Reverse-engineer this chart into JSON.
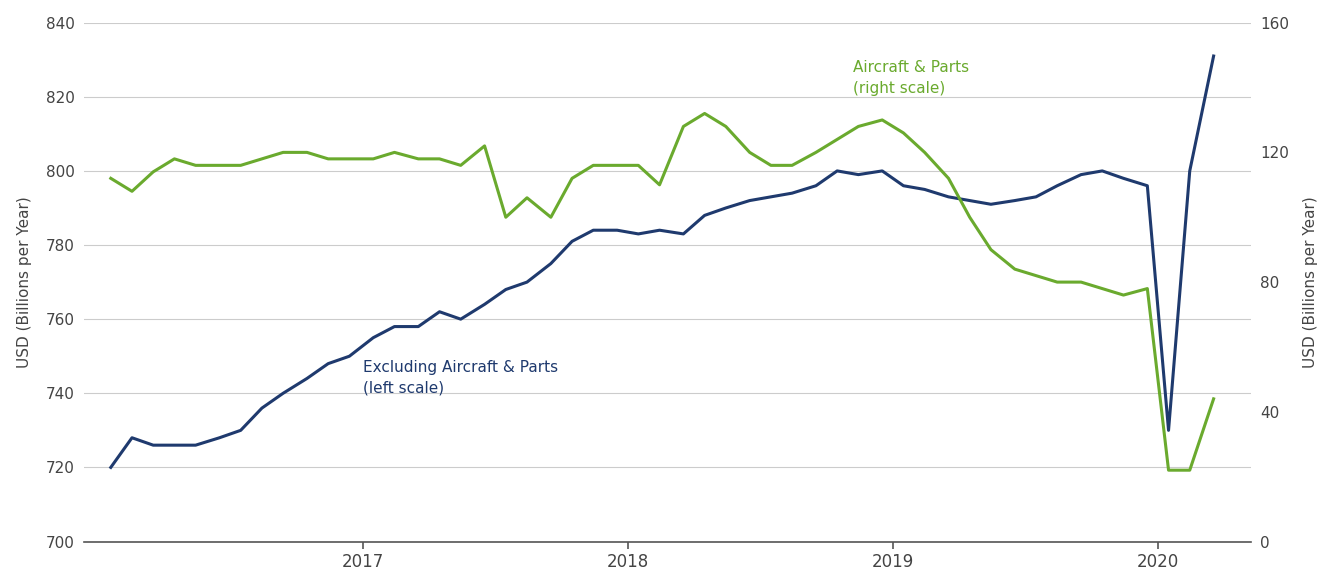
{
  "ylabel_left": "USD (Billions per Year)",
  "ylabel_right": "USD (Billions per Year)",
  "left_ylim": [
    700,
    840
  ],
  "right_ylim": [
    0,
    160
  ],
  "left_yticks": [
    700,
    720,
    740,
    760,
    780,
    800,
    820,
    840
  ],
  "right_yticks": [
    0,
    40,
    80,
    120,
    160
  ],
  "color_excl": "#1f3a6e",
  "color_aircraft": "#6aaa2e",
  "label_excl": "Excluding Aircraft & Parts\n(left scale)",
  "label_aircraft": "Aircraft & Parts\n(right scale)",
  "x_labels": [
    "2017",
    "2018",
    "2019",
    "2020"
  ],
  "x_tick_pos": [
    1.0,
    2.0,
    3.0,
    4.0
  ],
  "excl_x": [
    0.05,
    0.13,
    0.21,
    0.29,
    0.37,
    0.46,
    0.54,
    0.62,
    0.7,
    0.79,
    0.87,
    0.95,
    1.04,
    1.12,
    1.21,
    1.29,
    1.37,
    1.46,
    1.54,
    1.62,
    1.71,
    1.79,
    1.87,
    1.96,
    2.04,
    2.12,
    2.21,
    2.29,
    2.37,
    2.46,
    2.54,
    2.62,
    2.71,
    2.79,
    2.87,
    2.96,
    3.04,
    3.12,
    3.21,
    3.29,
    3.37,
    3.46,
    3.54,
    3.62,
    3.71,
    3.79,
    3.87,
    3.96,
    4.04,
    4.12,
    4.21
  ],
  "excl_y": [
    720,
    728,
    726,
    726,
    726,
    728,
    730,
    736,
    740,
    744,
    748,
    750,
    755,
    758,
    758,
    762,
    760,
    764,
    768,
    770,
    775,
    781,
    784,
    784,
    783,
    784,
    783,
    788,
    790,
    792,
    793,
    794,
    796,
    800,
    799,
    800,
    796,
    795,
    793,
    792,
    791,
    792,
    793,
    796,
    799,
    800,
    798,
    796,
    730,
    800,
    831
  ],
  "aircraft_x": [
    0.05,
    0.13,
    0.21,
    0.29,
    0.37,
    0.46,
    0.54,
    0.62,
    0.7,
    0.79,
    0.87,
    0.95,
    1.04,
    1.12,
    1.21,
    1.29,
    1.37,
    1.46,
    1.54,
    1.62,
    1.71,
    1.79,
    1.87,
    1.96,
    2.04,
    2.12,
    2.21,
    2.29,
    2.37,
    2.46,
    2.54,
    2.62,
    2.71,
    2.79,
    2.87,
    2.96,
    3.04,
    3.12,
    3.21,
    3.29,
    3.37,
    3.46,
    3.54,
    3.62,
    3.71,
    3.79,
    3.87,
    3.96,
    4.04,
    4.12,
    4.21
  ],
  "aircraft_y": [
    112,
    108,
    114,
    118,
    116,
    116,
    116,
    118,
    120,
    120,
    118,
    118,
    118,
    120,
    118,
    118,
    116,
    122,
    100,
    106,
    100,
    112,
    116,
    116,
    116,
    110,
    128,
    132,
    128,
    120,
    116,
    116,
    120,
    124,
    128,
    130,
    126,
    120,
    112,
    100,
    90,
    84,
    82,
    80,
    80,
    78,
    76,
    78,
    22,
    22,
    44
  ],
  "background_color": "#ffffff",
  "grid_color": "#cccccc"
}
